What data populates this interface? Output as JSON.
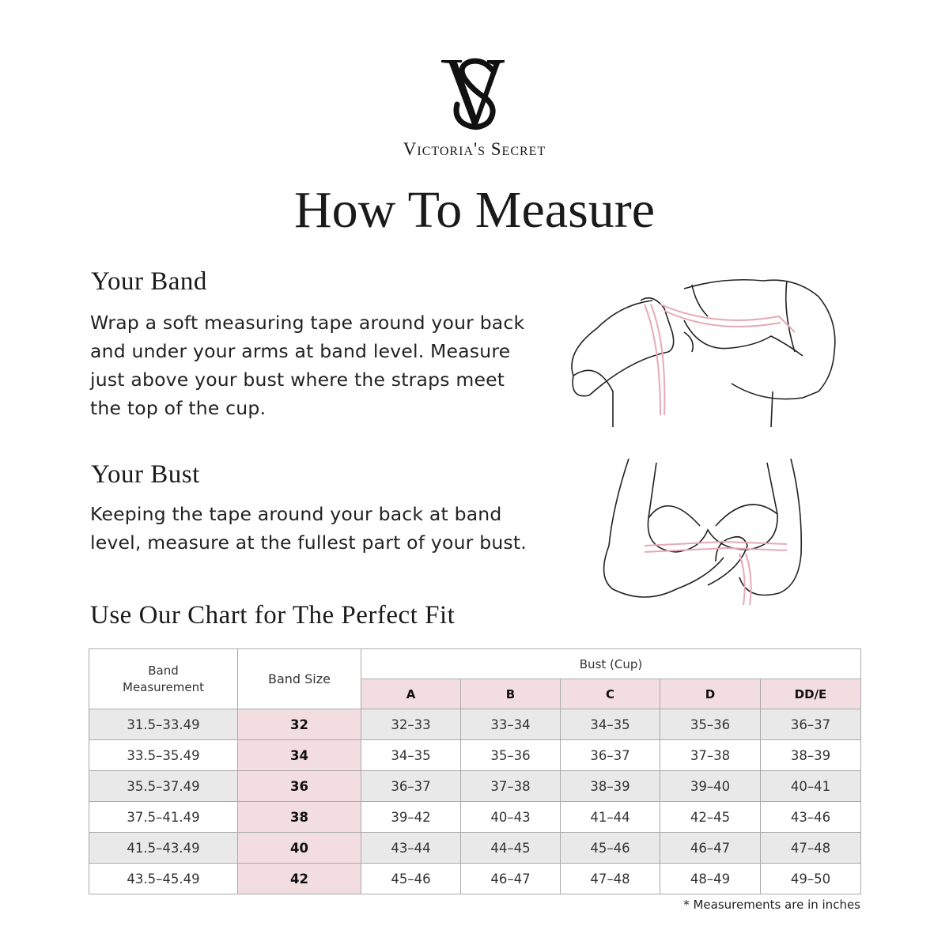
{
  "brand": {
    "logo_monogram": "VS",
    "name": "Victoria's Secret"
  },
  "title": "How To Measure",
  "band": {
    "heading": "Your Band",
    "lines": [
      "Wrap a soft measuring tape around your back",
      "and under your arms at band level.  Measure",
      "just above your bust where the straps meet",
      "the top of the cup."
    ]
  },
  "bust": {
    "heading": "Your Bust",
    "lines": [
      "Keeping the tape around your back at band",
      "level, measure at the fullest part of your bust."
    ]
  },
  "chart_heading": "Use Our Chart for The Perfect Fit",
  "colors": {
    "pink": "#f2dde1",
    "grey_row": "#e9e9e9",
    "tape": "#e8a9b5"
  },
  "table": {
    "headers": {
      "band_measurement": "Band Measurement",
      "band_size": "Band Size",
      "bust_cup": "Bust (Cup)",
      "cups": [
        "A",
        "B",
        "C",
        "D",
        "DD/E"
      ]
    },
    "rows": [
      {
        "measurement": "31.5–33.49",
        "size": "32",
        "cups": [
          "32–33",
          "33–34",
          "34–35",
          "35–36",
          "36–37"
        ]
      },
      {
        "measurement": "33.5–35.49",
        "size": "34",
        "cups": [
          "34–35",
          "35–36",
          "36–37",
          "37–38",
          "38–39"
        ]
      },
      {
        "measurement": "35.5–37.49",
        "size": "36",
        "cups": [
          "36–37",
          "37–38",
          "38–39",
          "39–40",
          "40–41"
        ]
      },
      {
        "measurement": "37.5–41.49",
        "size": "38",
        "cups": [
          "39–42",
          "40–43",
          "41–44",
          "42–45",
          "43–46"
        ]
      },
      {
        "measurement": "41.5–43.49",
        "size": "40",
        "cups": [
          "43–44",
          "44–45",
          "45–46",
          "46–47",
          "47–48"
        ]
      },
      {
        "measurement": "43.5–45.49",
        "size": "42",
        "cups": [
          "45–46",
          "46–47",
          "47–48",
          "48–49",
          "49–50"
        ]
      }
    ]
  },
  "footnote": "* Measurements are in inches"
}
